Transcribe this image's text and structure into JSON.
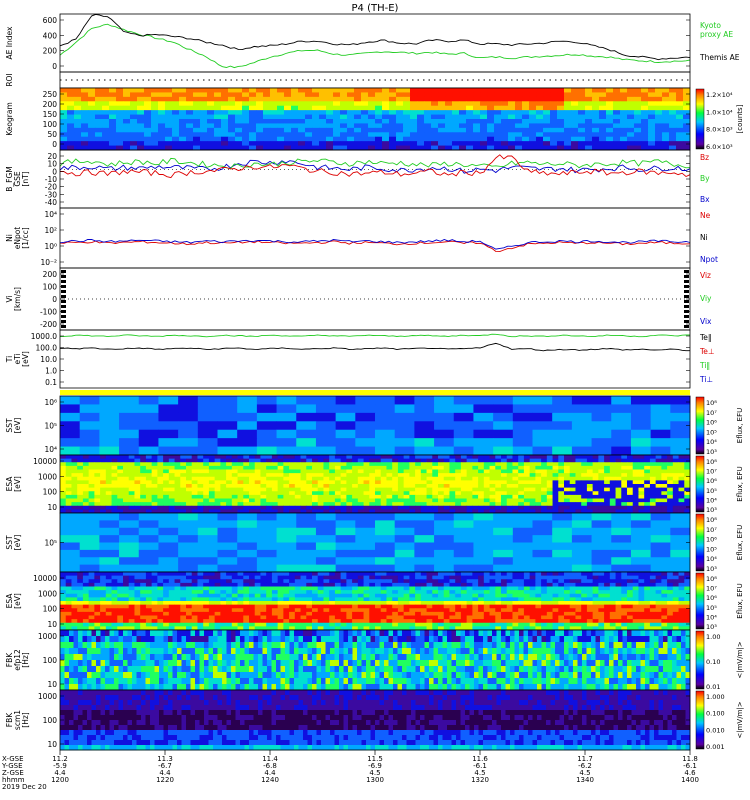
{
  "title": "P4 (TH-E)",
  "colors": {
    "black": "#000000",
    "green": "#22cc22",
    "red": "#dd0000",
    "blue": "#0000cc",
    "yellow": "#ffff00"
  },
  "chart_data": [
    {
      "type": "line",
      "panel": "ae",
      "ylabel": "AE Index",
      "yticks": [
        "600",
        "400",
        "200",
        "0"
      ],
      "ylim": [
        0,
        600
      ],
      "legend": [
        "Kyoto",
        "proxy AE",
        "Themis AE"
      ],
      "series": [
        {
          "name": "Kyoto proxy AE",
          "color": "#22cc22",
          "values": [
            180,
            320,
            470,
            510,
            450,
            400,
            360,
            320,
            240,
            170,
            60,
            50,
            100,
            160,
            200,
            230,
            230,
            190,
            180,
            200,
            220,
            210,
            200,
            210,
            190,
            200,
            150,
            160,
            150,
            160,
            170,
            180,
            190,
            170,
            160,
            130,
            120,
            110,
            115,
            120
          ]
        },
        {
          "name": "Themis AE",
          "color": "#000000",
          "values": [
            280,
            350,
            610,
            590,
            420,
            390,
            400,
            380,
            360,
            320,
            290,
            240,
            270,
            280,
            300,
            330,
            330,
            300,
            290,
            320,
            340,
            310,
            300,
            340,
            330,
            340,
            300,
            300,
            290,
            300,
            310,
            330,
            320,
            280,
            240,
            180,
            160,
            140,
            150,
            160
          ]
        }
      ]
    },
    {
      "type": "line",
      "panel": "roi",
      "ylabel": "ROI",
      "series": []
    },
    {
      "type": "heatmap",
      "panel": "keogram",
      "ylabel": "Keogram",
      "yticks": [
        "250",
        "200",
        "150",
        "100",
        "50",
        "0"
      ],
      "ylim": [
        0,
        250
      ],
      "colorbar": {
        "ticks": [
          "1.2×10⁴",
          "1.0×10⁴",
          "8.0×10³",
          "6.0×10³"
        ],
        "label": "[counts]"
      }
    },
    {
      "type": "line",
      "panel": "bfgm",
      "ylabel": "B_FGM",
      "yunit": "[nT]",
      "sublabel": "GSE",
      "yticks": [
        "20",
        "10",
        "0",
        "-10",
        "-20",
        "-30",
        "-40"
      ],
      "ylim": [
        -40,
        20
      ],
      "legend": [
        "Bz",
        "By",
        "Bx"
      ],
      "series": [
        {
          "name": "Bz",
          "color": "#dd0000",
          "values": [
            -2,
            -4,
            -3,
            -5,
            -2,
            -3,
            -4,
            -6,
            -3,
            -2,
            -1,
            1,
            3,
            2,
            4,
            1,
            -2,
            -3,
            -5,
            -4,
            -3,
            -5,
            -4,
            -2,
            -6,
            -3,
            -4,
            12,
            12,
            -3,
            -4,
            -5,
            -3,
            -2,
            -4,
            -3,
            -2,
            -4,
            -3,
            -6
          ]
        },
        {
          "name": "By",
          "color": "#22cc22",
          "values": [
            6,
            8,
            9,
            5,
            7,
            8,
            6,
            9,
            7,
            5,
            4,
            3,
            6,
            5,
            7,
            8,
            9,
            7,
            6,
            8,
            6,
            7,
            5,
            4,
            6,
            5,
            3,
            2,
            6,
            7,
            5,
            6,
            4,
            5,
            6,
            7,
            6,
            8,
            5,
            4
          ]
        },
        {
          "name": "Bx",
          "color": "#0000cc",
          "values": [
            1,
            2,
            3,
            0,
            2,
            1,
            3,
            2,
            1,
            0,
            2,
            6,
            8,
            7,
            9,
            6,
            2,
            1,
            0,
            2,
            1,
            -1,
            0,
            2,
            1,
            -2,
            0,
            -1,
            2,
            1,
            0,
            1,
            -1,
            0,
            1,
            2,
            0,
            1,
            2,
            0
          ]
        }
      ]
    },
    {
      "type": "line",
      "panel": "density",
      "ylabel": "Ni",
      "yunit": "[1/cc]",
      "sublabel": "eNpot",
      "yticks": [
        "10⁴",
        "10²",
        "10⁰",
        "10⁻²"
      ],
      "legend": [
        "Ne",
        "Ni",
        "Npot"
      ],
      "series": [
        {
          "name": "Ne",
          "color": "#dd0000",
          "values": [
            0.3,
            0.4,
            0.5,
            0.3,
            0.4,
            0.5,
            0.4,
            0.3,
            0.2,
            0.4,
            0.3,
            0.4,
            0.5,
            0.4,
            0.3,
            0.3,
            0.4,
            0.5,
            0.3,
            0.4,
            0.3,
            0.2,
            0.3,
            0.4,
            0.5,
            0.3,
            0.4,
            -0.8,
            -0.3,
            0.2,
            0.3,
            0.4,
            0.3,
            0.4,
            0.3,
            0.2,
            0.3,
            0.4,
            0.3,
            0.3
          ]
        },
        {
          "name": "Npot",
          "color": "#0000cc",
          "values": [
            0.5,
            0.6,
            0.7,
            0.5,
            0.6,
            0.7,
            0.6,
            0.5,
            0.4,
            0.6,
            0.5,
            0.6,
            0.7,
            0.6,
            0.5,
            0.5,
            0.6,
            0.7,
            0.5,
            0.6,
            0.5,
            0.4,
            0.5,
            0.6,
            0.7,
            0.5,
            0.6,
            -0.6,
            -0.1,
            0.4,
            0.5,
            0.6,
            0.5,
            0.6,
            0.5,
            0.4,
            0.5,
            0.6,
            0.5,
            0.5
          ]
        }
      ]
    },
    {
      "type": "line",
      "panel": "velocity",
      "ylabel": "Vi",
      "yunit": "[km/s]",
      "yticks": [
        "200",
        "100",
        "0",
        "-100",
        "-200"
      ],
      "ylim": [
        -250,
        250
      ],
      "legend": [
        "Viz",
        "Viy",
        "Vix"
      ],
      "series": []
    },
    {
      "type": "line",
      "panel": "temperature",
      "ylabel": "Ti",
      "yunit": "[eV]",
      "sublabel": "eTi",
      "yticks": [
        "1000.0",
        "100.0",
        "10.0",
        "1.0",
        "0.1"
      ],
      "legend": [
        "Te‖",
        "Te⊥",
        "Ti‖",
        "Ti⊥"
      ],
      "series": [
        {
          "name": "Ti‖",
          "color": "#22cc22",
          "values": [
            2.8,
            2.9,
            2.85,
            2.8,
            2.9,
            2.85,
            2.8,
            2.9,
            2.85,
            2.8,
            2.9,
            2.85,
            2.8,
            2.9,
            2.85,
            2.8,
            2.9,
            2.85,
            2.8,
            2.9,
            2.85,
            2.8,
            2.9,
            2.85,
            2.8,
            2.9,
            2.85,
            3.0,
            2.8,
            2.85,
            2.8,
            2.9,
            2.85,
            2.8,
            2.9,
            2.85,
            2.8,
            2.9,
            2.85,
            2.9
          ]
        },
        {
          "name": "Te‖",
          "color": "#000000",
          "values": [
            1.9,
            1.85,
            1.9,
            1.8,
            1.85,
            1.9,
            1.8,
            1.85,
            1.9,
            1.8,
            1.85,
            1.9,
            1.8,
            1.85,
            1.9,
            1.8,
            1.85,
            1.9,
            1.8,
            1.85,
            1.9,
            1.8,
            1.85,
            1.9,
            1.8,
            1.85,
            1.9,
            2.3,
            1.8,
            1.85,
            1.7,
            1.8,
            1.75,
            1.8,
            1.85,
            1.75,
            1.8,
            1.75,
            1.8,
            1.7
          ]
        }
      ]
    },
    {
      "type": "heatmap",
      "panel": "sst_ion",
      "ylabel": "SST",
      "yunit": "[eV]",
      "yticks": [
        "10⁶",
        "10⁵",
        "10⁴"
      ],
      "colorbar": {
        "ticks": [
          "10⁸",
          "10⁷",
          "10⁶",
          "10⁵",
          "10⁴",
          "10³"
        ],
        "label": "Eflux, EFU"
      }
    },
    {
      "type": "heatmap",
      "panel": "esa_ion",
      "ylabel": "ESA",
      "yunit": "[eV]",
      "yticks": [
        "10000",
        "1000",
        "100",
        "10"
      ],
      "colorbar": {
        "ticks": [
          "10⁸",
          "10⁷",
          "10⁶",
          "10⁵",
          "10⁴",
          "10³"
        ],
        "label": "Eflux, EFU"
      }
    },
    {
      "type": "heatmap",
      "panel": "sst_electron",
      "ylabel": "SST",
      "yunit": "[eV]",
      "yticks": [
        "10⁵"
      ],
      "colorbar": {
        "ticks": [
          "10⁸",
          "10⁷",
          "10⁶",
          "10⁵",
          "10⁴",
          "10³"
        ],
        "label": "Eflux, EFU"
      }
    },
    {
      "type": "heatmap",
      "panel": "esa_electron",
      "ylabel": "ESA",
      "yunit": "[eV]",
      "yticks": [
        "10000",
        "1000",
        "100",
        "10"
      ],
      "colorbar": {
        "ticks": [
          "10⁸",
          "10⁷",
          "10⁶",
          "10⁵",
          "10⁴",
          "10³"
        ],
        "label": "Eflux, EFU"
      }
    },
    {
      "type": "heatmap",
      "panel": "fbk_e",
      "ylabel": "FBK",
      "yunit": "[Hz]",
      "sublabel": "efp12",
      "yticks": [
        "1000",
        "100",
        "10"
      ],
      "colorbar": {
        "ticks": [
          "1.00",
          "0.10",
          "0.01"
        ],
        "label": "<|mV/m|>"
      }
    },
    {
      "type": "heatmap",
      "panel": "fbk_b",
      "ylabel": "FBK",
      "yunit": "[Hz]",
      "sublabel": "scm1",
      "yticks": [
        "1000",
        "100",
        "10"
      ],
      "colorbar": {
        "ticks": [
          "1.000",
          "0.100",
          "0.010",
          "0.001"
        ],
        "label": "<|mV/m|>"
      }
    }
  ],
  "xaxis": {
    "row_labels": [
      "X-GSE",
      "Y-GSE",
      "Z-GSE",
      "hhmm",
      "2019 Dec 20"
    ],
    "columns": [
      {
        "x": "11.2",
        "y": "-5.9",
        "z": "4.4",
        "t": "1200"
      },
      {
        "x": "11.3",
        "y": "-6.7",
        "z": "4.4",
        "t": "1220"
      },
      {
        "x": "11.4",
        "y": "-6.8",
        "z": "4.4",
        "t": "1240"
      },
      {
        "x": "11.5",
        "y": "-6.9",
        "z": "4.5",
        "t": "1300"
      },
      {
        "x": "11.6",
        "y": "-6.1",
        "z": "4.5",
        "t": "1320"
      },
      {
        "x": "11.7",
        "y": "-6.2",
        "z": "4.5",
        "t": "1340"
      },
      {
        "x": "11.8",
        "y": "-6.1",
        "z": "4.6",
        "t": "1400"
      }
    ]
  }
}
